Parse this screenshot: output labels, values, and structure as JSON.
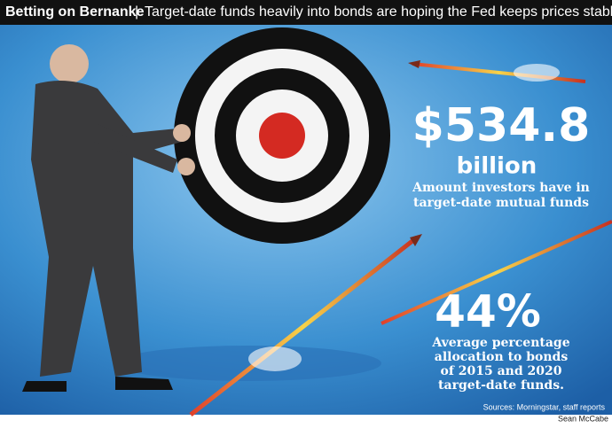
{
  "header": {
    "title": "Betting on Bernanke",
    "subtitle": "Target-date funds heavily into bonds are hoping the Fed keeps prices stable"
  },
  "stats": [
    {
      "value": "$534.8",
      "unit": "billion",
      "caption": [
        "Amount investors have in",
        "target-date mutual funds"
      ]
    },
    {
      "value": "44%",
      "caption": [
        "Average percentage",
        "allocation to bonds",
        "of 2015 and 2020",
        "target-date funds."
      ]
    }
  ],
  "sources": "Sources: Morningstar, staff reports",
  "credit": "Sean McCabe"
}
